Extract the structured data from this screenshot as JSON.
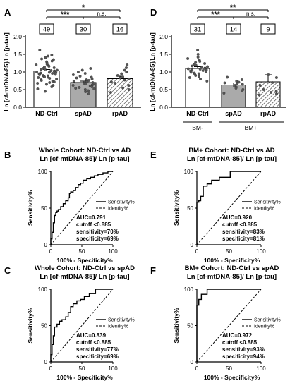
{
  "panels": [
    {
      "letter": "A"
    },
    {
      "letter": "D"
    },
    {
      "letter": "B"
    },
    {
      "letter": "E"
    },
    {
      "letter": "C"
    },
    {
      "letter": "F"
    }
  ],
  "chart_data": [
    {
      "id": "A",
      "type": "bar",
      "categories": [
        "ND-Ctrl",
        "spAD",
        "rpAD"
      ],
      "values": [
        1.03,
        0.7,
        0.81
      ],
      "errors": [
        0.04,
        0.04,
        0.07
      ],
      "n_labels": [
        "49",
        "30",
        "16"
      ],
      "fills": [
        "#ffffff",
        "#aaaaaa",
        "hatch"
      ],
      "ylabel": "Ln [cf-mtDNA-85]/Ln [p-tau]",
      "ylim": [
        0,
        2.0
      ],
      "yticks": [
        "0.0",
        "0.5",
        "1.0",
        "1.5",
        "2.0"
      ],
      "significance": [
        {
          "from": 0,
          "to": 1,
          "label": "***"
        },
        {
          "from": 1,
          "to": 2,
          "label": "n.s."
        },
        {
          "from": 0,
          "to": 2,
          "label": "*"
        }
      ],
      "points": [
        [
          1.62,
          1.48,
          1.45,
          1.41,
          1.37,
          1.35,
          1.31,
          1.29,
          1.25,
          1.22,
          1.2,
          1.18,
          1.16,
          1.14,
          1.12,
          1.1,
          1.08,
          1.07,
          1.05,
          1.04,
          1.03,
          1.02,
          1.0,
          0.99,
          0.98,
          0.97,
          0.96,
          0.95,
          0.93,
          0.92,
          0.9,
          0.89,
          0.88,
          0.86,
          0.85,
          0.84,
          0.82,
          0.8,
          0.78,
          0.76,
          0.74,
          0.72,
          0.7,
          0.68,
          0.65,
          0.62,
          0.58,
          0.52,
          0.45
        ],
        [
          1.1,
          1.05,
          1.0,
          0.96,
          0.92,
          0.88,
          0.85,
          0.83,
          0.8,
          0.78,
          0.76,
          0.74,
          0.72,
          0.7,
          0.69,
          0.68,
          0.67,
          0.66,
          0.65,
          0.63,
          0.62,
          0.6,
          0.58,
          0.56,
          0.54,
          0.52,
          0.5,
          0.47,
          0.44,
          0.38
        ],
        [
          1.2,
          1.12,
          1.05,
          1.0,
          0.95,
          0.9,
          0.86,
          0.83,
          0.8,
          0.77,
          0.72,
          0.68,
          0.62,
          0.55,
          0.5,
          0.42
        ]
      ]
    },
    {
      "id": "D",
      "type": "bar",
      "categories": [
        "ND-Ctrl",
        "spAD",
        "rpAD"
      ],
      "values": [
        1.1,
        0.63,
        0.72
      ],
      "errors": [
        0.05,
        0.06,
        0.2
      ],
      "n_labels": [
        "31",
        "14",
        "9"
      ],
      "fills": [
        "#ffffff",
        "#aaaaaa",
        "hatch"
      ],
      "ylabel": "Ln [cf-mtDNA-85]/Ln [p-tau]",
      "ylim": [
        0,
        2.0
      ],
      "yticks": [
        "0.0",
        "0.5",
        "1.0",
        "1.5",
        "2.0"
      ],
      "group_labels": [
        "BM-",
        "BM+"
      ],
      "significance": [
        {
          "from": 0,
          "to": 1,
          "label": "***"
        },
        {
          "from": 1,
          "to": 2,
          "label": "n.s."
        },
        {
          "from": 0,
          "to": 2,
          "label": "**"
        }
      ],
      "points": [
        [
          1.62,
          1.5,
          1.42,
          1.38,
          1.33,
          1.3,
          1.27,
          1.24,
          1.21,
          1.19,
          1.17,
          1.15,
          1.13,
          1.11,
          1.1,
          1.09,
          1.08,
          1.06,
          1.05,
          1.04,
          1.03,
          1.01,
          0.99,
          0.97,
          0.95,
          0.93,
          0.9,
          0.87,
          0.84,
          0.8,
          0.74
        ],
        [
          0.85,
          0.78,
          0.74,
          0.71,
          0.69,
          0.67,
          0.65,
          0.62,
          0.6,
          0.57,
          0.54,
          0.5,
          0.46,
          0.4
        ],
        [
          0.92,
          0.84,
          0.7,
          0.62,
          0.5,
          0.45,
          0.42,
          0.38,
          0.35
        ]
      ]
    },
    {
      "id": "B",
      "type": "line",
      "title_lines": [
        "Whole Cohort: ND-Ctrl vs AD",
        "Ln [cf-mtDNA-85]/ Ln [p-tau]"
      ],
      "xlabel": "100% - Specificity%",
      "ylabel": "Sensitivity%",
      "xlim": [
        0,
        100
      ],
      "ylim": [
        0,
        100
      ],
      "xticks": [
        "0",
        "50",
        "100"
      ],
      "yticks": [
        "0",
        "50",
        "100"
      ],
      "legend": [
        "Sensitivity%",
        "Identity%"
      ],
      "stats": [
        "AUC=0.791",
        "cutoff <0.885",
        "sensitivity=70%",
        "specificity=69%"
      ],
      "series": [
        {
          "name": "Sensitivity%",
          "x": [
            0,
            0,
            2,
            2,
            4,
            4,
            6,
            6,
            8,
            8,
            10,
            10,
            12,
            12,
            16,
            16,
            20,
            20,
            24,
            24,
            28,
            28,
            30,
            30,
            32,
            32,
            36,
            36,
            40,
            40,
            44,
            44,
            48,
            48,
            52,
            52,
            58,
            58,
            64,
            64,
            70,
            70,
            76,
            76,
            84,
            84,
            92,
            92,
            100
          ],
          "y": [
            0,
            8,
            8,
            17,
            17,
            30,
            30,
            40,
            40,
            44,
            44,
            46,
            46,
            48,
            48,
            52,
            52,
            56,
            56,
            60,
            60,
            64,
            64,
            70,
            70,
            72,
            72,
            74,
            74,
            78,
            78,
            82,
            82,
            84,
            84,
            88,
            88,
            90,
            90,
            92,
            92,
            94,
            94,
            96,
            96,
            98,
            98,
            100,
            100
          ]
        },
        {
          "name": "Identity%",
          "x": [
            0,
            100
          ],
          "y": [
            0,
            100
          ]
        }
      ]
    },
    {
      "id": "E",
      "type": "line",
      "title_lines": [
        "BM+ Cohort: ND-Ctrl vs AD",
        "Ln [cf-mtDNA-85]/ Ln [p-tau]"
      ],
      "xlabel": "100% - Specificity%",
      "ylabel": "Sensitivity%",
      "xlim": [
        0,
        100
      ],
      "ylim": [
        0,
        100
      ],
      "xticks": [
        "0",
        "50",
        "100"
      ],
      "yticks": [
        "0",
        "50",
        "100"
      ],
      "legend": [
        "Sensitivity%",
        "Identity%"
      ],
      "stats": [
        "AUC=0.920",
        "cutoff <0.885",
        "sensitivity=83%",
        "specificity=81%"
      ],
      "series": [
        {
          "name": "Sensitivity%",
          "x": [
            0,
            0,
            3,
            3,
            6,
            6,
            10,
            10,
            16,
            16,
            23,
            23,
            35,
            35,
            52,
            52,
            100
          ],
          "y": [
            0,
            58,
            58,
            60,
            60,
            66,
            66,
            80,
            80,
            83,
            83,
            88,
            88,
            92,
            92,
            100,
            100
          ]
        },
        {
          "name": "Identity%",
          "x": [
            0,
            100
          ],
          "y": [
            0,
            100
          ]
        }
      ]
    },
    {
      "id": "C",
      "type": "line",
      "title_lines": [
        "Whole Cohort: ND-Ctrl vs spAD",
        "Ln [cf-mtDNA-85]/ Ln [p-tau]"
      ],
      "xlabel": "100% - Specificity%",
      "ylabel": "Sensitivity%",
      "xlim": [
        0,
        100
      ],
      "ylim": [
        0,
        100
      ],
      "xticks": [
        "0",
        "50",
        "100"
      ],
      "yticks": [
        "0",
        "50",
        "100"
      ],
      "legend": [
        "Sensitivity%",
        "Identity%"
      ],
      "stats": [
        "AUC=0.839",
        "cutoff <0.885",
        "sensitivity=77%",
        "specificity=69%"
      ],
      "series": [
        {
          "name": "Sensitivity%",
          "x": [
            0,
            0,
            2,
            2,
            4,
            4,
            6,
            6,
            10,
            10,
            14,
            14,
            18,
            18,
            24,
            24,
            28,
            28,
            32,
            32,
            36,
            36,
            42,
            42,
            48,
            48,
            54,
            54,
            62,
            62,
            72,
            72,
            100
          ],
          "y": [
            0,
            10,
            10,
            24,
            24,
            36,
            36,
            48,
            48,
            52,
            52,
            56,
            56,
            58,
            58,
            62,
            62,
            68,
            68,
            76,
            76,
            80,
            80,
            84,
            84,
            86,
            86,
            90,
            90,
            94,
            94,
            100,
            100
          ]
        },
        {
          "name": "Identity%",
          "x": [
            0,
            100
          ],
          "y": [
            0,
            100
          ]
        }
      ]
    },
    {
      "id": "F",
      "type": "line",
      "title_lines": [
        "BM+ Cohort: ND-Ctrl vs spAD",
        "Ln [cf-mtDNA-85]/ Ln [p-tau]"
      ],
      "xlabel": "100% - Specificity%",
      "ylabel": "Sensitivity%",
      "xlim": [
        0,
        100
      ],
      "ylim": [
        0,
        100
      ],
      "xticks": [
        "0",
        "50",
        "100"
      ],
      "yticks": [
        "0",
        "50",
        "100"
      ],
      "legend": [
        "Sensitivity%",
        "Identity%"
      ],
      "stats": [
        "AUC=0.972",
        "cutoff <0.885",
        "sensitivity=93%",
        "specificity=94%"
      ],
      "series": [
        {
          "name": "Sensitivity%",
          "x": [
            0,
            0,
            3,
            3,
            7,
            7,
            16,
            16,
            100
          ],
          "y": [
            0,
            78,
            78,
            86,
            86,
            93,
            93,
            100,
            100
          ]
        },
        {
          "name": "Identity%",
          "x": [
            0,
            100
          ],
          "y": [
            0,
            100
          ]
        }
      ]
    }
  ]
}
